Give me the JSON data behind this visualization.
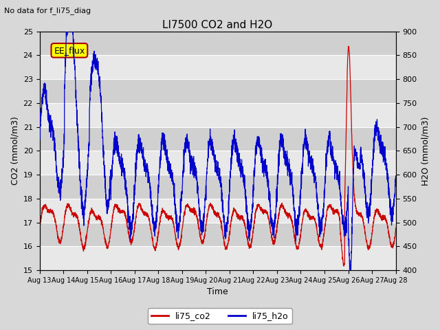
{
  "title": "LI7500 CO2 and H2O",
  "subtitle": "No data for f_li75_diag",
  "xlabel": "Time",
  "ylabel_left": "CO2 (mmol/m3)",
  "ylabel_right": "H2O (mmol/m3)",
  "ylim_left": [
    15.0,
    25.0
  ],
  "ylim_right": [
    400,
    900
  ],
  "yticks_left": [
    15.0,
    16.0,
    17.0,
    18.0,
    19.0,
    20.0,
    21.0,
    22.0,
    23.0,
    24.0,
    25.0
  ],
  "yticks_right": [
    400,
    450,
    500,
    550,
    600,
    650,
    700,
    750,
    800,
    850,
    900
  ],
  "xtick_labels": [
    "Aug 13",
    "Aug 14",
    "Aug 15",
    "Aug 16",
    "Aug 17",
    "Aug 18",
    "Aug 19",
    "Aug 20",
    "Aug 21",
    "Aug 22",
    "Aug 23",
    "Aug 24",
    "Aug 25",
    "Aug 26",
    "Aug 27",
    "Aug 28"
  ],
  "legend_labels": [
    "li75_co2",
    "li75_h2o"
  ],
  "co2_color": "#cc0000",
  "h2o_color": "#0000cc",
  "ee_flux_color": "#ffff00",
  "ee_flux_border": "#aa0000",
  "background_color": "#d8d8d8",
  "plot_bg_light": "#e8e8e8",
  "plot_bg_dark": "#d0d0d0",
  "grid_color": "#ffffff",
  "annotation_box": "EE_flux",
  "n_days": 15
}
